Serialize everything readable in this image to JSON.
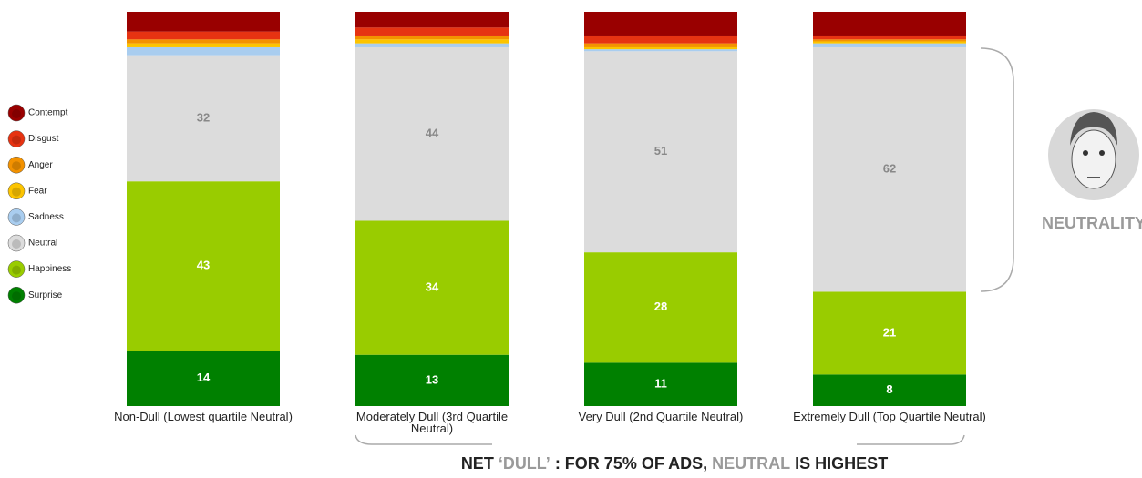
{
  "chart_data": {
    "type": "stacked-bar",
    "categories": [
      "Non-Dull (Lowest quartile Neutral)",
      "Moderately Dull (3rd Quartile Neutral)",
      "Very Dull (2nd Quartile Neutral)",
      "Extremely Dull (Top Quartile Neutral)"
    ],
    "series": [
      {
        "name": "Contempt",
        "color": "#990000",
        "values": [
          5,
          4,
          6,
          6
        ]
      },
      {
        "name": "Disgust",
        "color": "#e63312",
        "values": [
          2,
          2,
          2,
          1
        ]
      },
      {
        "name": "Anger",
        "color": "#f39200",
        "values": [
          1,
          1,
          1,
          0.5
        ]
      },
      {
        "name": "Fear",
        "color": "#fcc400",
        "values": [
          1,
          1,
          0.5,
          0.5
        ]
      },
      {
        "name": "Sadness",
        "color": "#a9cdef",
        "values": [
          2,
          1,
          0.5,
          1
        ]
      },
      {
        "name": "Neutral",
        "color": "#dcdcdc",
        "values": [
          32,
          44,
          51,
          62
        ],
        "show_labels": true,
        "label_color": "#888888"
      },
      {
        "name": "Happiness",
        "color": "#99cc00",
        "values": [
          43,
          34,
          28,
          21
        ],
        "show_labels": true,
        "label_color": "#ffffff"
      },
      {
        "name": "Surprise",
        "color": "#008000",
        "values": [
          14,
          13,
          11,
          8
        ],
        "show_labels": true,
        "label_color": "#ffffff"
      }
    ],
    "annotations": {
      "side": "NEUTRALITY",
      "bottom": [
        "NET",
        "‘DULL’",
        ": FOR 75% OF ADS,",
        "NEUTRAL",
        "IS HIGHEST"
      ]
    }
  }
}
